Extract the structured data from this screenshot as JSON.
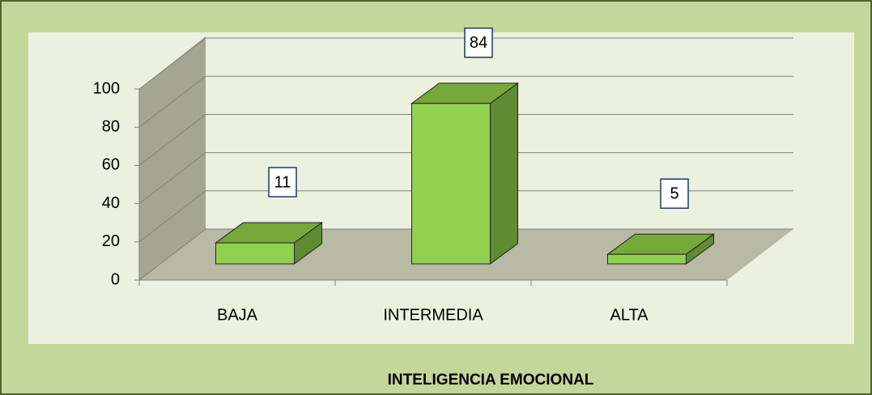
{
  "chart_data": {
    "type": "bar3d",
    "title": "INTELIGENCIA EMOCIONAL",
    "categories": [
      "BAJA",
      "INTERMEDIA",
      "ALTA"
    ],
    "values": [
      11,
      84,
      5
    ],
    "color": "#92d050",
    "ylim": [
      0,
      100
    ],
    "yticks": [
      0,
      20,
      40,
      60,
      80,
      100
    ],
    "grid": true
  }
}
